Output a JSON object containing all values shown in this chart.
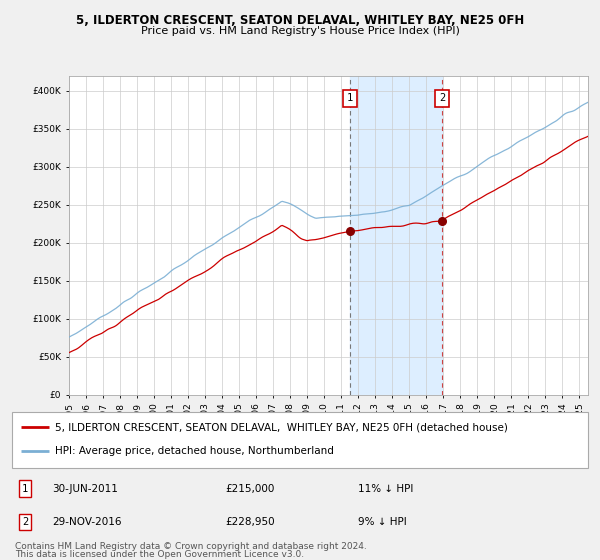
{
  "title1": "5, ILDERTON CRESCENT, SEATON DELAVAL, WHITLEY BAY, NE25 0FH",
  "title2": "Price paid vs. HM Land Registry's House Price Index (HPI)",
  "ylim": [
    0,
    420000
  ],
  "yticks": [
    0,
    50000,
    100000,
    150000,
    200000,
    250000,
    300000,
    350000,
    400000
  ],
  "ytick_labels": [
    "£0",
    "£50K",
    "£100K",
    "£150K",
    "£200K",
    "£250K",
    "£300K",
    "£350K",
    "£400K"
  ],
  "xlim_start": 1995.0,
  "xlim_end": 2025.5,
  "sale1_date": 2011.5,
  "sale1_price": 215000,
  "sale1_label": "1",
  "sale2_date": 2016.917,
  "sale2_price": 228950,
  "sale2_label": "2",
  "hpi_color": "#7bafd4",
  "price_color": "#cc0000",
  "bg_color": "#f0f0f0",
  "plot_bg_color": "#ffffff",
  "shade_color": "#ddeeff",
  "vline1_color": "#777777",
  "vline2_color": "#cc4444",
  "legend_label1": "5, ILDERTON CRESCENT, SEATON DELAVAL,  WHITLEY BAY, NE25 0FH (detached house)",
  "legend_label2": "HPI: Average price, detached house, Northumberland",
  "footer": "Contains HM Land Registry data © Crown copyright and database right 2024.\nThis data is licensed under the Open Government Licence v3.0.",
  "title1_fontsize": 8.5,
  "title2_fontsize": 8.0,
  "tick_fontsize": 6.5,
  "legend_fontsize": 7.5,
  "annotation_fontsize": 7.5,
  "footer_fontsize": 6.5,
  "marker_color": "#880000",
  "box_edge_color": "#cc0000"
}
